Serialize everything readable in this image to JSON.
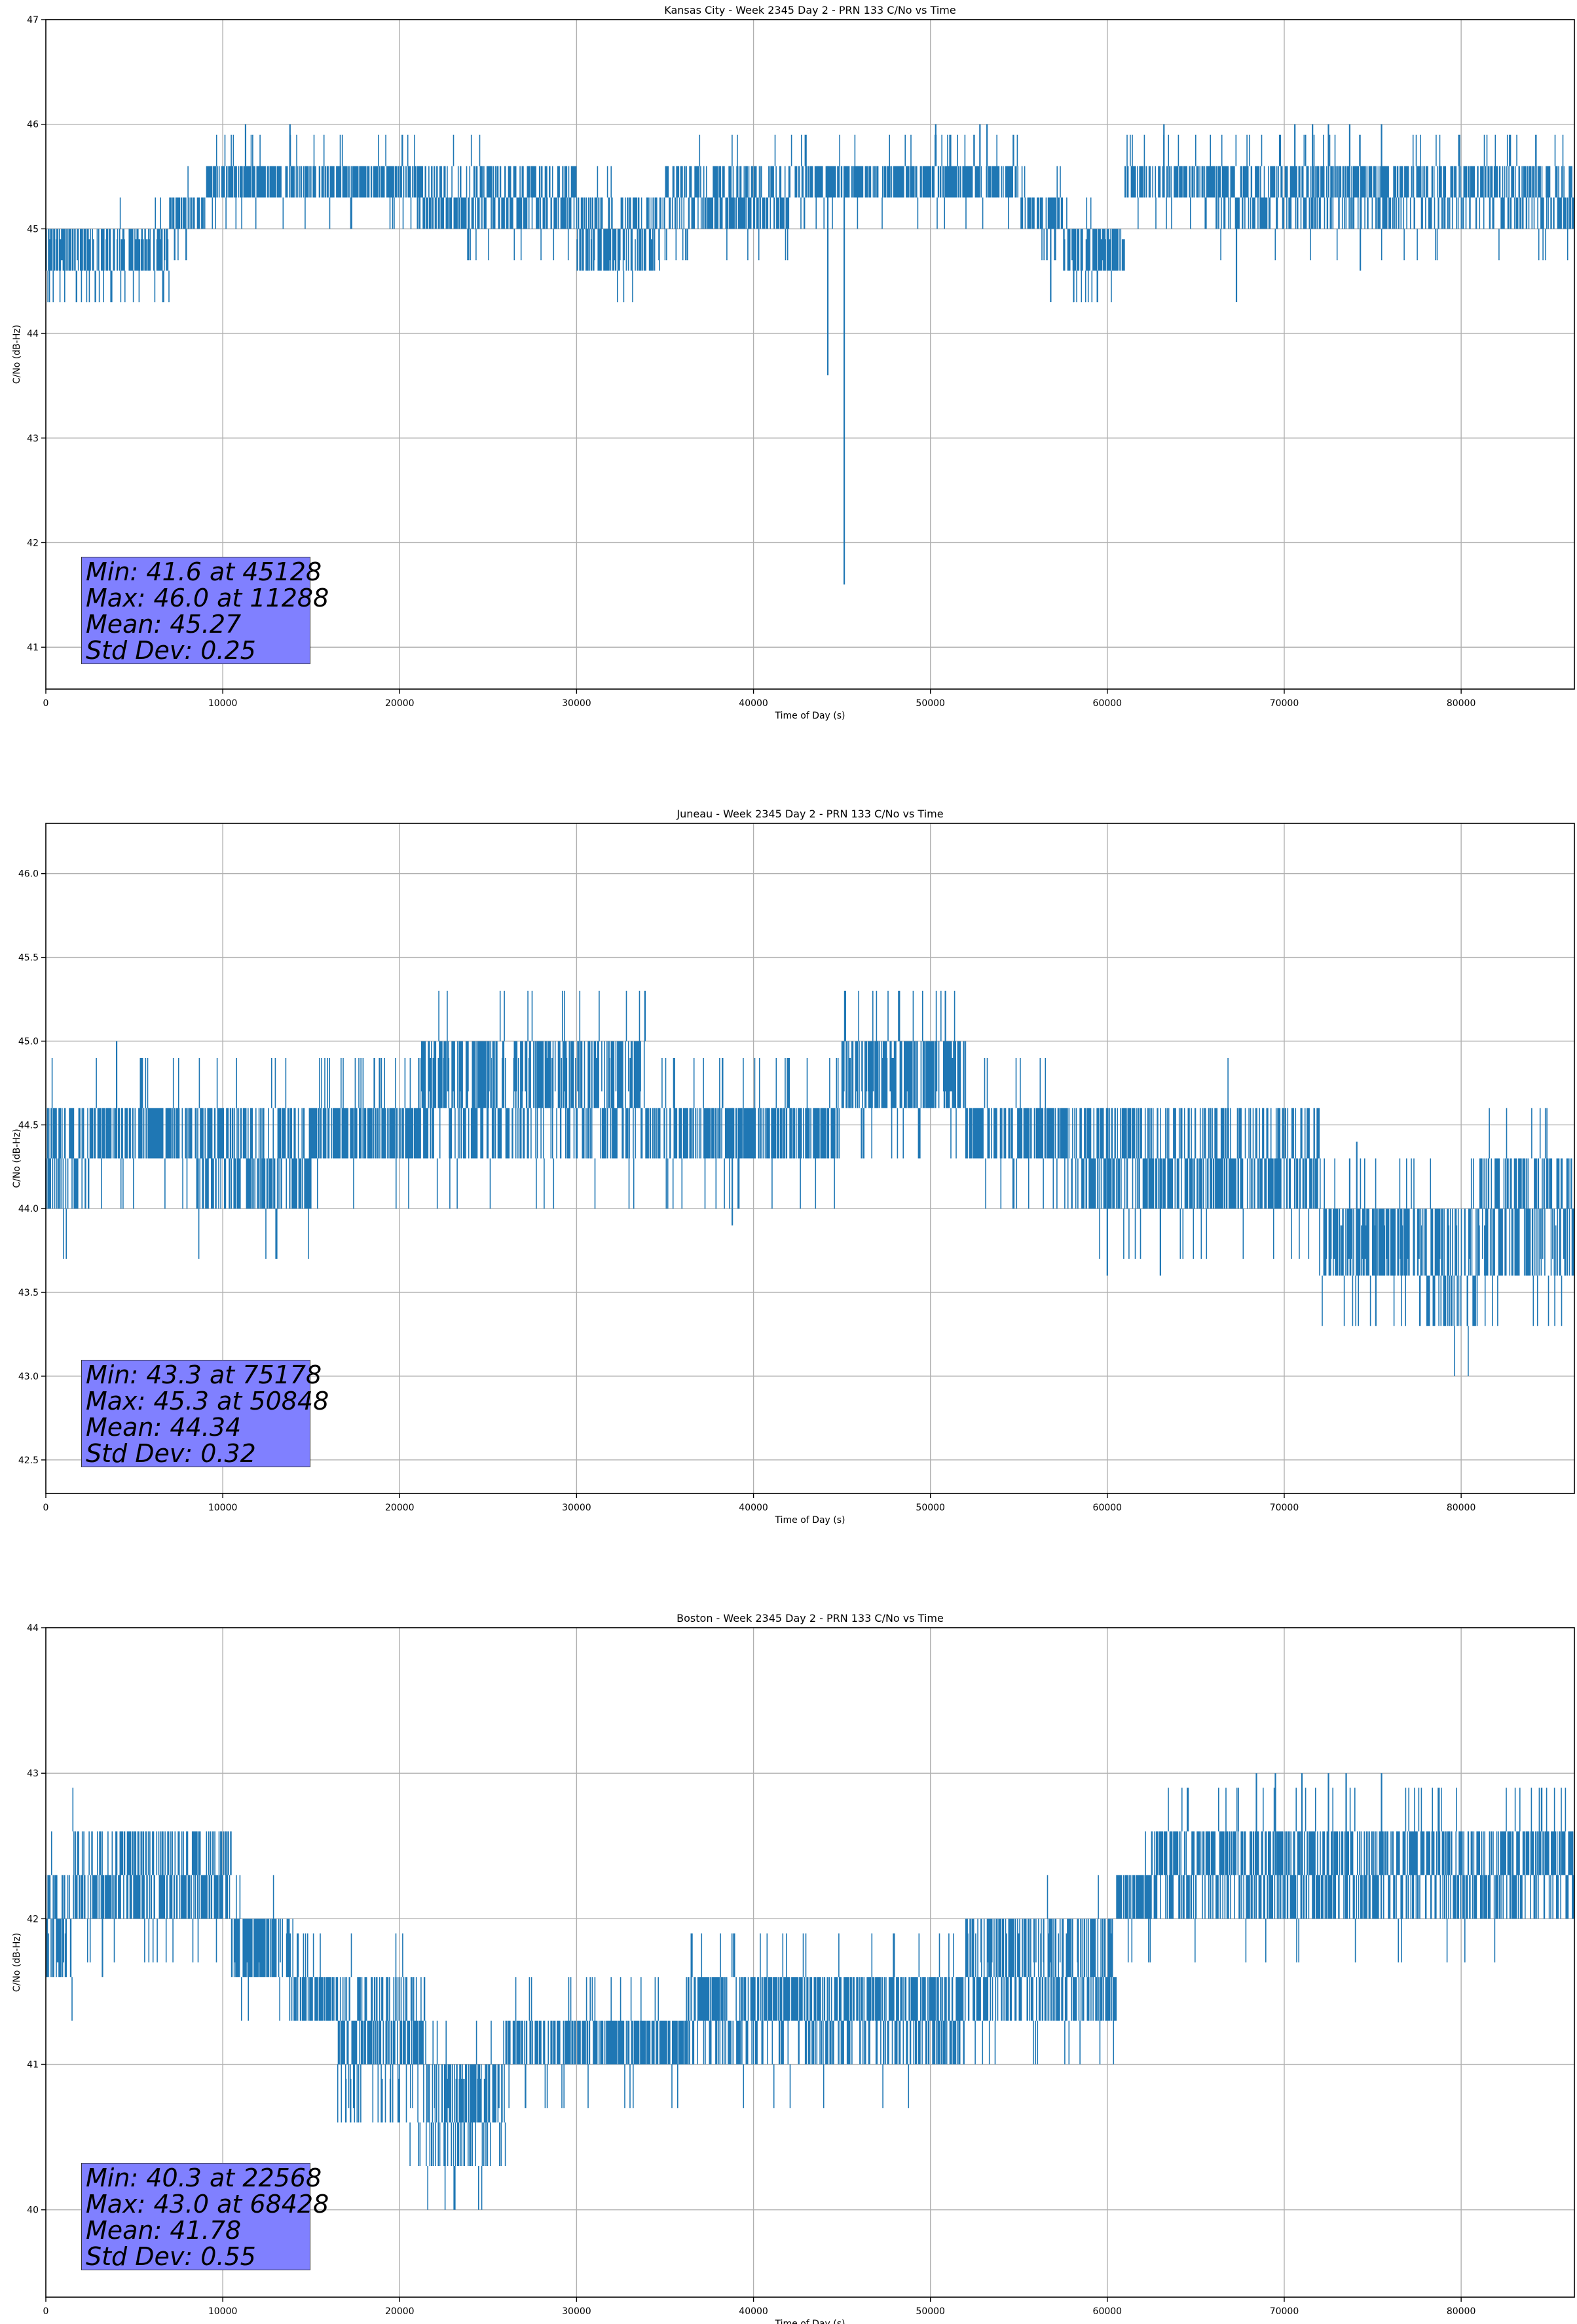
{
  "figure": {
    "background": "#ffffff"
  },
  "style": {
    "line_color": "#1f77b4",
    "grid_color": "#b0b0b0",
    "stats_box_color": "#8080ff"
  },
  "chart_data": [
    {
      "type": "line",
      "title": "Kansas City - Week 2345 Day 2 - PRN 133 C/No vs Time",
      "xlabel": "Time of Day (s)",
      "ylabel": "C/No (dB-Hz)",
      "xlim": [
        0,
        86400
      ],
      "ylim": [
        40.6,
        47.0
      ],
      "xticks": [
        0,
        10000,
        20000,
        30000,
        40000,
        50000,
        60000,
        70000,
        80000
      ],
      "xtick_labels": [
        "0",
        "10000",
        "20000",
        "30000",
        "40000",
        "50000",
        "60000",
        "70000",
        "80000"
      ],
      "yticks": [
        41,
        42,
        43,
        44,
        45,
        46,
        47
      ],
      "ytick_labels": [
        "41",
        "42",
        "43",
        "44",
        "45",
        "46",
        "47"
      ],
      "grid": true,
      "quantization": 0.3,
      "segments": [
        {
          "x": [
            0,
            7000
          ],
          "levels": [
            44.6,
            45.0
          ],
          "weights": [
            0.75,
            0.25
          ],
          "noise": 0.06
        },
        {
          "x": [
            7000,
            9000
          ],
          "levels": [
            45.0,
            45.3
          ],
          "weights": [
            0.5,
            0.5
          ],
          "noise": 0.08
        },
        {
          "x": [
            9000,
            21000
          ],
          "levels": [
            45.3,
            45.6
          ],
          "weights": [
            0.35,
            0.65
          ],
          "noise": 0.05
        },
        {
          "x": [
            21000,
            30000
          ],
          "levels": [
            45.0,
            45.3,
            45.6
          ],
          "weights": [
            0.35,
            0.55,
            0.1
          ],
          "noise": 0.04
        },
        {
          "x": [
            30000,
            35000
          ],
          "levels": [
            44.6,
            45.0,
            45.3
          ],
          "weights": [
            0.3,
            0.4,
            0.3
          ],
          "noise": 0.06
        },
        {
          "x": [
            35000,
            42000
          ],
          "levels": [
            45.0,
            45.3,
            45.6
          ],
          "weights": [
            0.35,
            0.5,
            0.15
          ],
          "noise": 0.06
        },
        {
          "x": [
            42000,
            55000
          ],
          "levels": [
            45.3,
            45.6
          ],
          "weights": [
            0.4,
            0.6
          ],
          "noise": 0.05
        },
        {
          "x": [
            55000,
            57500
          ],
          "levels": [
            45.0,
            45.3
          ],
          "weights": [
            0.55,
            0.45
          ],
          "noise": 0.05
        },
        {
          "x": [
            57500,
            61000
          ],
          "levels": [
            44.6,
            45.0
          ],
          "weights": [
            0.7,
            0.3
          ],
          "noise": 0.05
        },
        {
          "x": [
            61000,
            66000
          ],
          "levels": [
            45.3,
            45.6
          ],
          "weights": [
            0.5,
            0.5
          ],
          "noise": 0.05
        },
        {
          "x": [
            66000,
            86400
          ],
          "levels": [
            45.0,
            45.3,
            45.6
          ],
          "weights": [
            0.2,
            0.35,
            0.45
          ],
          "noise": 0.06
        }
      ],
      "spikes": [
        {
          "x": 11288,
          "y": 46.0
        },
        {
          "x": 13800,
          "y": 46.0
        },
        {
          "x": 44200,
          "y": 43.6
        },
        {
          "x": 45128,
          "y": 41.6
        },
        {
          "x": 50300,
          "y": 46.0
        },
        {
          "x": 52800,
          "y": 46.0
        },
        {
          "x": 53200,
          "y": 46.0
        },
        {
          "x": 56800,
          "y": 44.3
        },
        {
          "x": 58100,
          "y": 44.3
        },
        {
          "x": 67300,
          "y": 44.3
        },
        {
          "x": 70600,
          "y": 46.0
        },
        {
          "x": 71600,
          "y": 46.0
        },
        {
          "x": 72500,
          "y": 46.0
        },
        {
          "x": 73700,
          "y": 46.0
        },
        {
          "x": 75500,
          "y": 46.0
        },
        {
          "x": 74300,
          "y": 44.6
        },
        {
          "x": 63200,
          "y": 46.0
        }
      ],
      "stats": [
        "Min: 41.6 at 45128",
        "Max: 46.0 at 11288",
        "Mean: 45.27",
        "Std Dev: 0.25"
      ]
    },
    {
      "type": "line",
      "title": "Juneau - Week 2345 Day 2 - PRN 133 C/No vs Time",
      "xlabel": "Time of Day (s)",
      "ylabel": "C/No (dB-Hz)",
      "xlim": [
        0,
        86400
      ],
      "ylim": [
        42.3,
        46.3
      ],
      "xticks": [
        0,
        10000,
        20000,
        30000,
        40000,
        50000,
        60000,
        70000,
        80000
      ],
      "xtick_labels": [
        "0",
        "10000",
        "20000",
        "30000",
        "40000",
        "50000",
        "60000",
        "70000",
        "80000"
      ],
      "yticks": [
        42.5,
        43.0,
        43.5,
        44.0,
        44.5,
        45.0,
        45.5,
        46.0
      ],
      "ytick_labels": [
        "42.5",
        "43.0",
        "43.5",
        "44.0",
        "44.5",
        "45.0",
        "45.5",
        "46.0"
      ],
      "grid": true,
      "quantization": 0.3,
      "segments": [
        {
          "x": [
            0,
            2500
          ],
          "levels": [
            44.0,
            44.3,
            44.6
          ],
          "weights": [
            0.35,
            0.45,
            0.2
          ],
          "noise": 0.08
        },
        {
          "x": [
            2500,
            8500
          ],
          "levels": [
            44.3,
            44.6
          ],
          "weights": [
            0.4,
            0.6
          ],
          "noise": 0.05
        },
        {
          "x": [
            8500,
            15000
          ],
          "levels": [
            44.0,
            44.3,
            44.6
          ],
          "weights": [
            0.3,
            0.45,
            0.25
          ],
          "noise": 0.08
        },
        {
          "x": [
            15000,
            21000
          ],
          "levels": [
            44.3,
            44.6
          ],
          "weights": [
            0.45,
            0.55
          ],
          "noise": 0.07
        },
        {
          "x": [
            21000,
            34000
          ],
          "levels": [
            44.3,
            44.6,
            45.0
          ],
          "weights": [
            0.15,
            0.45,
            0.4
          ],
          "noise": 0.07
        },
        {
          "x": [
            34000,
            45000
          ],
          "levels": [
            44.3,
            44.6
          ],
          "weights": [
            0.45,
            0.55
          ],
          "noise": 0.06
        },
        {
          "x": [
            45000,
            52000
          ],
          "levels": [
            44.6,
            45.0
          ],
          "weights": [
            0.4,
            0.6
          ],
          "noise": 0.05
        },
        {
          "x": [
            52000,
            58500
          ],
          "levels": [
            44.3,
            44.6
          ],
          "weights": [
            0.5,
            0.5
          ],
          "noise": 0.05
        },
        {
          "x": [
            58500,
            72000
          ],
          "levels": [
            44.0,
            44.3,
            44.6
          ],
          "weights": [
            0.45,
            0.45,
            0.1
          ],
          "noise": 0.06
        },
        {
          "x": [
            72000,
            78000
          ],
          "levels": [
            43.6,
            44.0
          ],
          "weights": [
            0.55,
            0.45
          ],
          "noise": 0.06
        },
        {
          "x": [
            78000,
            81000
          ],
          "levels": [
            43.3,
            43.6,
            44.0
          ],
          "weights": [
            0.25,
            0.45,
            0.3
          ],
          "noise": 0.07
        },
        {
          "x": [
            81000,
            86400
          ],
          "levels": [
            43.6,
            44.0,
            44.3
          ],
          "weights": [
            0.3,
            0.4,
            0.3
          ],
          "noise": 0.07
        }
      ],
      "spikes": [
        {
          "x": 4000,
          "y": 45.0
        },
        {
          "x": 38800,
          "y": 43.9
        },
        {
          "x": 50848,
          "y": 45.3
        },
        {
          "x": 75178,
          "y": 43.3
        },
        {
          "x": 63000,
          "y": 43.6
        },
        {
          "x": 73700,
          "y": 44.3
        },
        {
          "x": 74100,
          "y": 44.4
        },
        {
          "x": 60000,
          "y": 43.6
        }
      ],
      "stats": [
        "Min: 43.3 at 75178",
        "Max: 45.3 at 50848",
        "Mean: 44.34",
        "Std Dev: 0.32"
      ]
    },
    {
      "type": "line",
      "title": "Boston - Week 2345 Day 2 - PRN 133 C/No vs Time",
      "xlabel": "Time of Day (s)",
      "ylabel": "C/No (dB-Hz)",
      "xlim": [
        0,
        86400
      ],
      "ylim": [
        39.4,
        44.0
      ],
      "xticks": [
        0,
        10000,
        20000,
        30000,
        40000,
        50000,
        60000,
        70000,
        80000
      ],
      "xtick_labels": [
        "0",
        "10000",
        "20000",
        "30000",
        "40000",
        "50000",
        "60000",
        "70000",
        "80000"
      ],
      "yticks": [
        40,
        41,
        42,
        43,
        44
      ],
      "ytick_labels": [
        "40",
        "41",
        "42",
        "43",
        "44"
      ],
      "grid": true,
      "quantization": 0.3,
      "segments": [
        {
          "x": [
            0,
            1500
          ],
          "levels": [
            41.6,
            42.0,
            42.3
          ],
          "weights": [
            0.35,
            0.35,
            0.3
          ],
          "noise": 0.08
        },
        {
          "x": [
            1500,
            10500
          ],
          "levels": [
            42.0,
            42.3,
            42.6
          ],
          "weights": [
            0.45,
            0.45,
            0.1
          ],
          "noise": 0.05
        },
        {
          "x": [
            10500,
            14000
          ],
          "levels": [
            41.6,
            42.0
          ],
          "weights": [
            0.55,
            0.45
          ],
          "noise": 0.06
        },
        {
          "x": [
            14000,
            16500
          ],
          "levels": [
            41.3,
            41.6
          ],
          "weights": [
            0.5,
            0.5
          ],
          "noise": 0.06
        },
        {
          "x": [
            16500,
            21500
          ],
          "levels": [
            40.6,
            41.0,
            41.3,
            41.6
          ],
          "weights": [
            0.15,
            0.35,
            0.35,
            0.15
          ],
          "noise": 0.07
        },
        {
          "x": [
            21500,
            26000
          ],
          "levels": [
            40.3,
            40.6,
            41.0
          ],
          "weights": [
            0.15,
            0.45,
            0.4
          ],
          "noise": 0.07
        },
        {
          "x": [
            26000,
            36000
          ],
          "levels": [
            41.0,
            41.3
          ],
          "weights": [
            0.45,
            0.55
          ],
          "noise": 0.06
        },
        {
          "x": [
            36000,
            52000
          ],
          "levels": [
            41.0,
            41.3,
            41.6
          ],
          "weights": [
            0.1,
            0.55,
            0.35
          ],
          "noise": 0.06
        },
        {
          "x": [
            52000,
            60500
          ],
          "levels": [
            41.3,
            41.6,
            42.0
          ],
          "weights": [
            0.25,
            0.45,
            0.3
          ],
          "noise": 0.06
        },
        {
          "x": [
            60500,
            62500
          ],
          "levels": [
            42.0,
            42.3
          ],
          "weights": [
            0.5,
            0.5
          ],
          "noise": 0.05
        },
        {
          "x": [
            62500,
            86400
          ],
          "levels": [
            42.0,
            42.3,
            42.6
          ],
          "weights": [
            0.15,
            0.45,
            0.4
          ],
          "noise": 0.06
        }
      ],
      "spikes": [
        {
          "x": 22568,
          "y": 40.3
        },
        {
          "x": 68428,
          "y": 43.0
        },
        {
          "x": 69500,
          "y": 43.0
        },
        {
          "x": 71000,
          "y": 43.0
        },
        {
          "x": 72500,
          "y": 43.0
        },
        {
          "x": 73500,
          "y": 43.0
        },
        {
          "x": 75500,
          "y": 43.0
        },
        {
          "x": 3200,
          "y": 41.6
        },
        {
          "x": 5500,
          "y": 42.6
        },
        {
          "x": 8500,
          "y": 42.6
        }
      ],
      "stats": [
        "Min: 40.3 at 22568",
        "Max: 43.0 at 68428",
        "Mean: 41.78",
        "Std Dev: 0.55"
      ]
    }
  ]
}
